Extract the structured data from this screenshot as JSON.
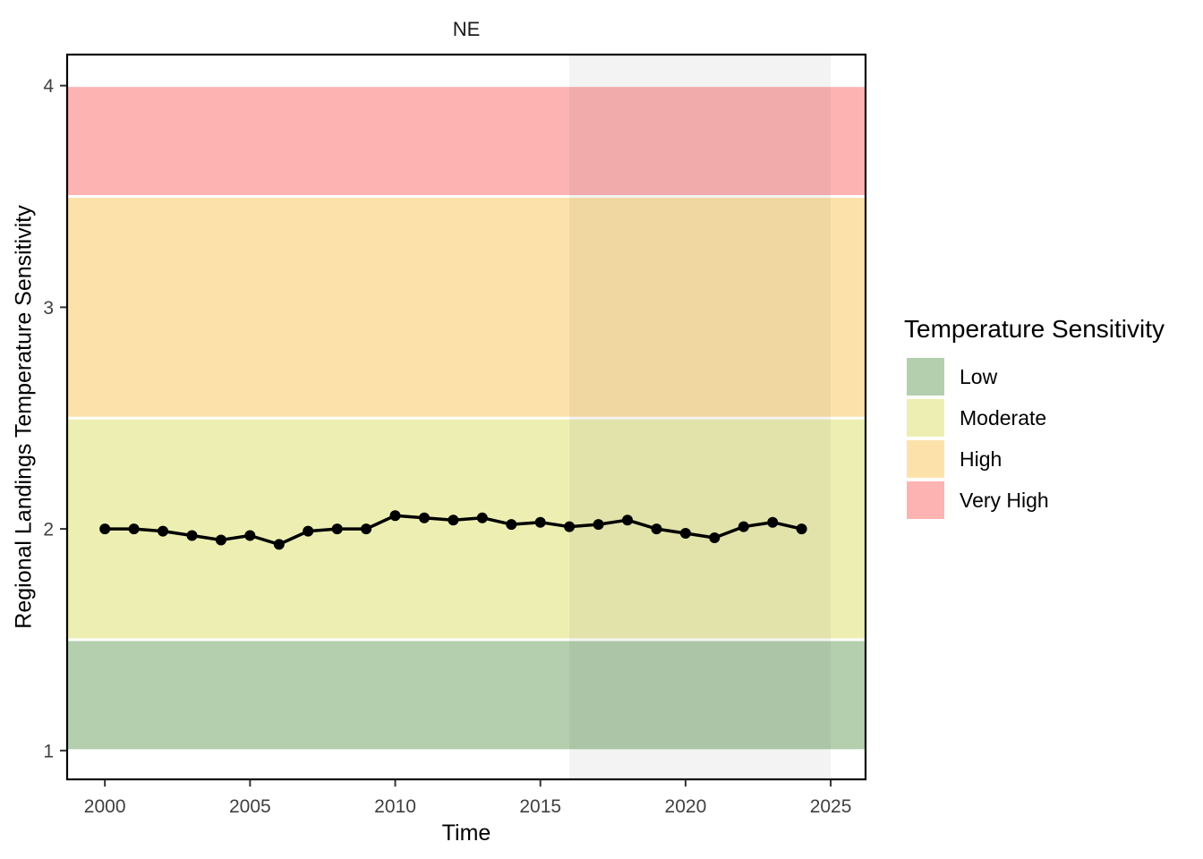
{
  "panel": {
    "title": "NE"
  },
  "legend": {
    "title": "Temperature Sensitivity",
    "items": [
      {
        "label": "Low",
        "color": "#b3cfae"
      },
      {
        "label": "Moderate",
        "color": "#edefb2"
      },
      {
        "label": "High",
        "color": "#fce2aa"
      },
      {
        "label": "Very High",
        "color": "#fcb3b2"
      }
    ]
  },
  "chart_data": {
    "type": "line",
    "title": "NE",
    "xlabel": "Time",
    "ylabel": "Regional Landings Temperature Sensitivity",
    "x": [
      2000,
      2001,
      2002,
      2003,
      2004,
      2005,
      2006,
      2007,
      2008,
      2009,
      2010,
      2011,
      2012,
      2013,
      2014,
      2015,
      2016,
      2017,
      2018,
      2019,
      2020,
      2021,
      2022,
      2023,
      2024
    ],
    "values": [
      2.0,
      2.0,
      1.99,
      1.97,
      1.95,
      1.97,
      1.93,
      1.99,
      2.0,
      2.0,
      2.06,
      2.05,
      2.04,
      2.05,
      2.02,
      2.03,
      2.01,
      2.02,
      2.04,
      2.0,
      1.98,
      1.96,
      2.01,
      2.03,
      2.0
    ],
    "series_name": "Regional Landings Temperature Sensitivity",
    "line_color": "#000000",
    "point_color": "#000000",
    "x_ticks": [
      2000,
      2005,
      2010,
      2015,
      2020,
      2025
    ],
    "y_ticks": [
      1,
      2,
      3,
      4
    ],
    "xlim": [
      1998.7,
      2026.2
    ],
    "ylim": [
      0.87,
      4.14
    ],
    "grid": false,
    "legend_position": "right",
    "bands": [
      {
        "label": "Low",
        "from": 1.0,
        "to": 1.5,
        "color": "#b3cfae"
      },
      {
        "label": "Moderate",
        "from": 1.5,
        "to": 2.5,
        "color": "#edefb2"
      },
      {
        "label": "High",
        "from": 2.5,
        "to": 3.5,
        "color": "#fce2aa"
      },
      {
        "label": "Very High",
        "from": 3.5,
        "to": 4.0,
        "color": "#fcb3b2"
      }
    ],
    "highlight_region": {
      "from": 2016,
      "to": 2025,
      "color": "rgba(40,40,40,0.055)"
    }
  }
}
